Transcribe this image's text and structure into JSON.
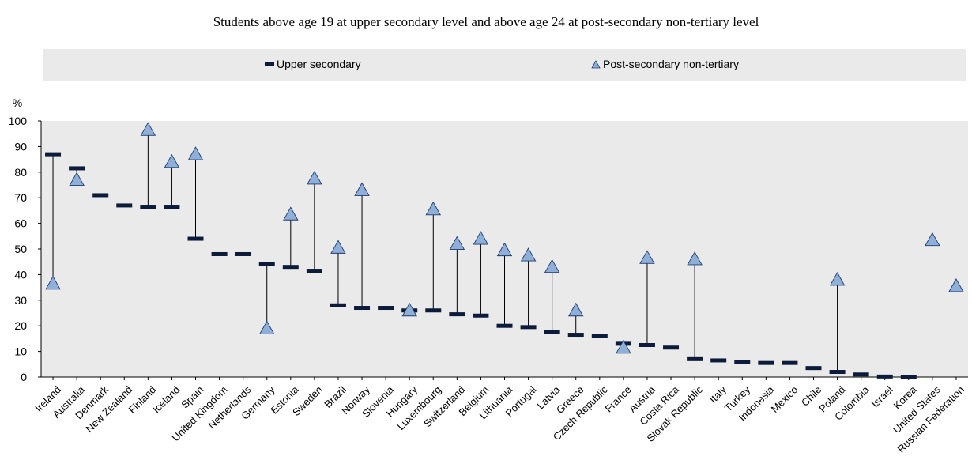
{
  "chart_data": {
    "type": "scatter",
    "title": "Students above age 19 at upper secondary level and above age 24 at post-secondary non-tertiary level",
    "ylabel": "%",
    "ylim": [
      0,
      100
    ],
    "yticks": [
      0,
      10,
      20,
      30,
      40,
      50,
      60,
      70,
      80,
      90,
      100
    ],
    "grid": false,
    "legend_position": "top",
    "categories": [
      "Ireland",
      "Australia",
      "Denmark",
      "New Zealand",
      "Finland",
      "Iceland",
      "Spain",
      "United Kingdom",
      "Netherlands",
      "Germany",
      "Estonia",
      "Sweden",
      "Brazil",
      "Norway",
      "Slovenia",
      "Hungary",
      "Luxembourg",
      "Switzerland",
      "Belgium",
      "Lithuania",
      "Portugal",
      "Latvia",
      "Greece",
      "Czech Republic",
      "France",
      "Austria",
      "Costa Rica",
      "Slovak Republic",
      "Italy",
      "Turkey",
      "Indonesia",
      "Mexico",
      "Chile",
      "Poland",
      "Colombia",
      "Israel",
      "Korea",
      "United States",
      "Russian Federation"
    ],
    "series": [
      {
        "name": "Upper secondary",
        "marker": "dash",
        "color": "#0d1b3a",
        "values": [
          87,
          81.5,
          71,
          67,
          66.5,
          66.5,
          54,
          48,
          48,
          44,
          43,
          41.5,
          28,
          27,
          27,
          26,
          26,
          24.5,
          24,
          20,
          19.5,
          17.5,
          16.5,
          16,
          13,
          12.5,
          11.5,
          7,
          6.5,
          6,
          5.5,
          5.5,
          3.5,
          2,
          1,
          0.2,
          0.1,
          null,
          null
        ]
      },
      {
        "name": "Post-secondary non-tertiary",
        "marker": "triangle",
        "color": "#8fafd9",
        "values": [
          36.5,
          77,
          null,
          null,
          96.5,
          84,
          87,
          null,
          null,
          19,
          63.5,
          77.5,
          50.5,
          73,
          null,
          26,
          65.5,
          52,
          54,
          49.5,
          47.5,
          43,
          26,
          null,
          11.5,
          46.5,
          null,
          46,
          null,
          null,
          null,
          null,
          null,
          38,
          null,
          null,
          null,
          53.5,
          35.5
        ]
      }
    ]
  },
  "colors": {
    "plot_background": "#eaeaea",
    "legend_background": "#eaeaea",
    "connector": "#000000"
  }
}
